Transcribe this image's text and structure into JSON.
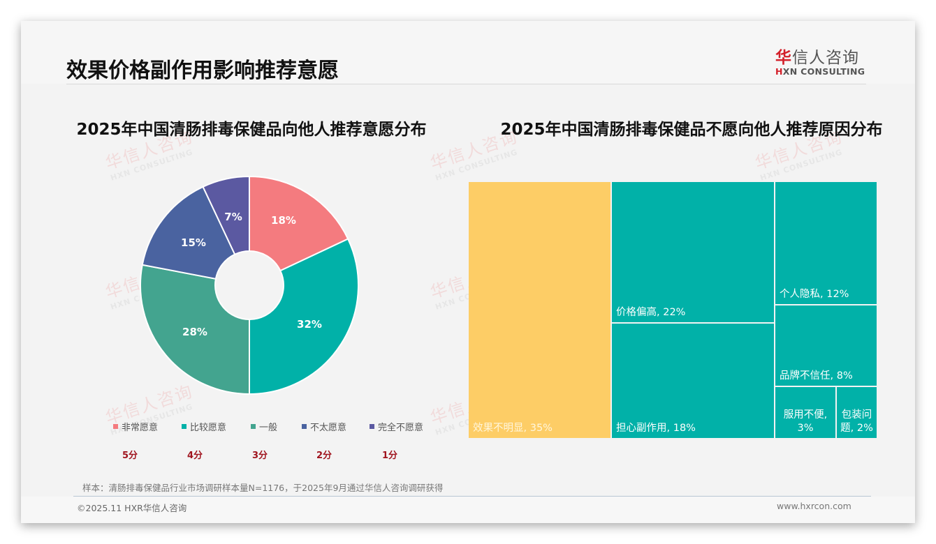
{
  "header": {
    "title": "效果价格副作用影响推荐意愿",
    "logo_cn_accent": "华",
    "logo_cn_rest": "信人咨询",
    "logo_en_accent": "H",
    "logo_en_rest": "XN CONSULTING"
  },
  "watermark": {
    "cn": "华信人咨询",
    "en": "HXN CONSULTING"
  },
  "left_chart": {
    "title": "2025年中国清肠排毒保健品向他人推荐意愿分布"
  },
  "right_chart": {
    "title": "2025年中国清肠排毒保健品不愿向他人推荐原因分布"
  },
  "legend": [
    {
      "label": "非常愿意",
      "color": "#f47b7f",
      "score": "5分"
    },
    {
      "label": "比较愿意",
      "color": "#01b1a8",
      "score": "4分"
    },
    {
      "label": "一般",
      "color": "#43a48f",
      "score": "3分"
    },
    {
      "label": "不太愿意",
      "color": "#4a63a0",
      "score": "2分"
    },
    {
      "label": "完全不愿意",
      "color": "#5b59a1",
      "score": "1分"
    }
  ],
  "pie_labels": [
    "18%",
    "32%",
    "28%",
    "15%",
    "7%"
  ],
  "treemap_labels": [
    "效果不明显, 35%",
    "价格偏高, 22%",
    "担心副作用, 18%",
    "个人隐私, 12%",
    "品牌不信任, 8%",
    "服用不便, 3%",
    "包装问题, 2%"
  ],
  "footer": {
    "note": "样本：清肠排毒保健品行业市场调研样本量N=1176，于2025年9月通过华信人咨询调研获得",
    "copyright": "©2025.11 HXR华信人咨询",
    "website": "www.hxrcon.com"
  },
  "chart_data": [
    {
      "type": "pie",
      "title": "2025年中国清肠排毒保健品向他人推荐意愿分布",
      "donut": true,
      "categories": [
        "非常愿意",
        "比较愿意",
        "一般",
        "不太愿意",
        "完全不愿意"
      ],
      "scores": [
        "5分",
        "4分",
        "3分",
        "2分",
        "1分"
      ],
      "values": [
        18,
        32,
        28,
        15,
        7
      ],
      "unit": "%",
      "colors": [
        "#f47b7f",
        "#01b1a8",
        "#43a48f",
        "#4a63a0",
        "#5b59a1"
      ],
      "legend_position": "bottom"
    },
    {
      "type": "treemap",
      "title": "2025年中国清肠排毒保健品不愿向他人推荐原因分布",
      "categories": [
        "效果不明显",
        "价格偏高",
        "担心副作用",
        "个人隐私",
        "品牌不信任",
        "服用不便",
        "包装问题"
      ],
      "values": [
        35,
        22,
        18,
        12,
        8,
        3,
        2
      ],
      "unit": "%",
      "colors": [
        "#fdcd66",
        "#01b1a8",
        "#01b1a8",
        "#01b1a8",
        "#01b1a8",
        "#01b1a8",
        "#01b1a8"
      ]
    }
  ]
}
